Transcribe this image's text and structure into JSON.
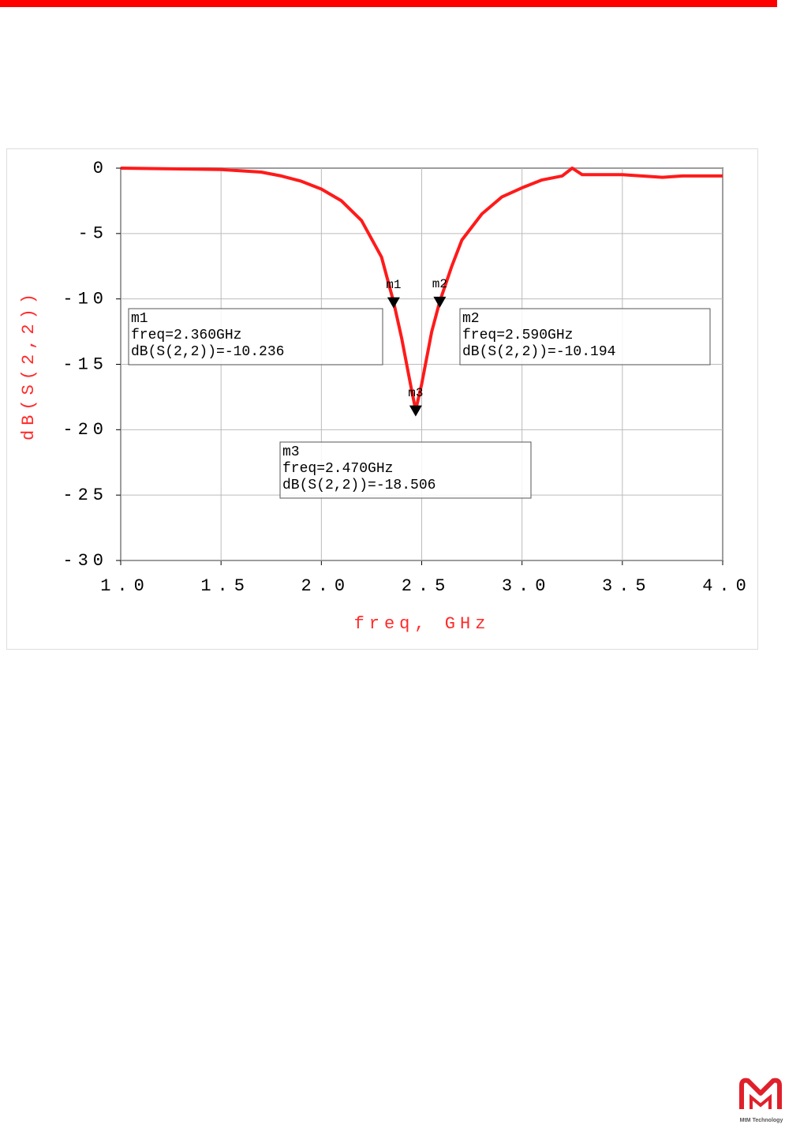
{
  "chart_data": {
    "type": "line",
    "y_label": "dB(S(2,2))",
    "x_label": "freq, GHz",
    "x": [
      1.0,
      1.5,
      1.7,
      1.8,
      1.9,
      2.0,
      2.1,
      2.2,
      2.3,
      2.36,
      2.4,
      2.45,
      2.47,
      2.5,
      2.55,
      2.59,
      2.65,
      2.7,
      2.8,
      2.9,
      3.0,
      3.1,
      3.2,
      3.25,
      3.3,
      3.5,
      3.7,
      3.8,
      4.0
    ],
    "series": [
      {
        "name": "dB(S(2,2))",
        "color": "#ff1a1a",
        "values": [
          0,
          -0.1,
          -0.3,
          -0.6,
          -1.0,
          -1.6,
          -2.5,
          -4.0,
          -6.8,
          -10.236,
          -13.0,
          -17.0,
          -18.506,
          -16.5,
          -12.5,
          -10.194,
          -7.5,
          -5.5,
          -3.5,
          -2.2,
          -1.5,
          -0.9,
          -0.6,
          0,
          -0.5,
          -0.5,
          -0.7,
          -0.6,
          -0.6
        ]
      }
    ],
    "xlim": [
      1.0,
      4.0
    ],
    "xticks": [
      {
        "value": 1.0,
        "label": "1.0"
      },
      {
        "value": 1.5,
        "label": "1.5"
      },
      {
        "value": 2.0,
        "label": "2.0"
      },
      {
        "value": 2.5,
        "label": "2.5"
      },
      {
        "value": 3.0,
        "label": "3.0"
      },
      {
        "value": 3.5,
        "label": "3.5"
      },
      {
        "value": 4.0,
        "label": "4.0"
      }
    ],
    "ylim": [
      -30,
      0
    ],
    "yticks": [
      0,
      -5,
      -10,
      -15,
      -20,
      -25,
      -30
    ],
    "grid": true,
    "markers": [
      {
        "name": "m1",
        "x": 2.36,
        "y": -10.236,
        "lines": [
          "m1",
          "freq=2.360GHz",
          "dB(S(2,2))=-10.236"
        ]
      },
      {
        "name": "m2",
        "x": 2.59,
        "y": -10.194,
        "lines": [
          "m2",
          "freq=2.590GHz",
          "dB(S(2,2))=-10.194"
        ]
      },
      {
        "name": "m3",
        "x": 2.47,
        "y": -18.506,
        "lines": [
          "m3",
          "freq=2.470GHz",
          "dB(S(2,2))=-18.506"
        ]
      }
    ]
  },
  "logo_text": "MtM Technology"
}
